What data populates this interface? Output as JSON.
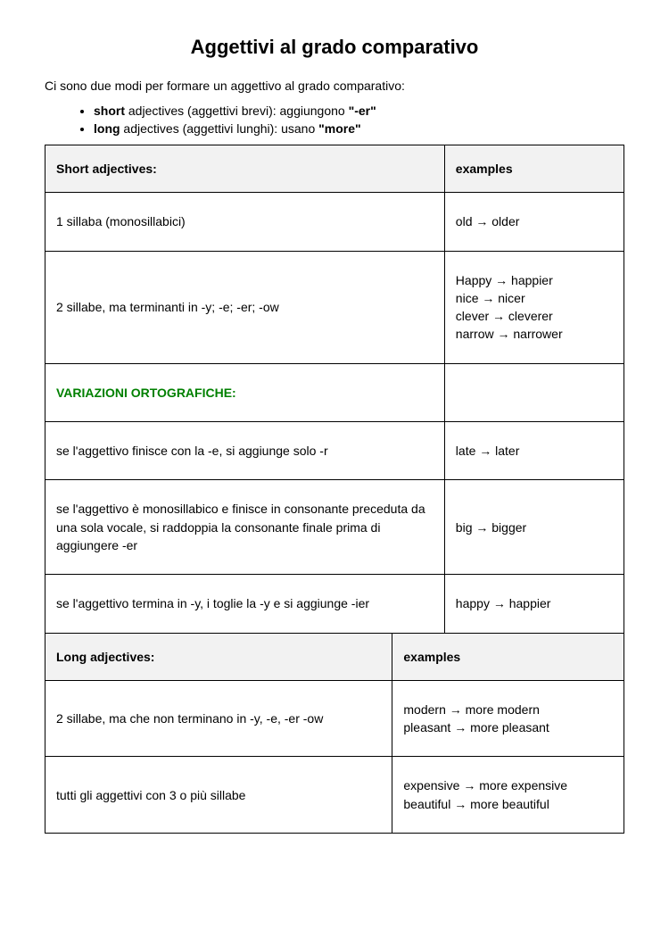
{
  "title": "Aggettivi al grado comparativo",
  "intro": "Ci sono due modi per formare un aggettivo al grado comparativo:",
  "bullets": {
    "b1_pre": "short",
    "b1_mid": " adjectives (aggettivi brevi): aggiungono ",
    "b1_suf": "\"-er\"",
    "b2_pre": "long",
    "b2_mid": " adjectives (aggettivi lunghi): usano ",
    "b2_suf": "\"more\""
  },
  "table1": {
    "header_left": "Short adjectives:",
    "header_right": "examples",
    "rows": [
      {
        "rule": "1 sillaba (monosillabici)",
        "example": "old → older"
      },
      {
        "rule": "2 sillabe, ma terminanti in -y; -e; -er; -ow",
        "example": "Happy → happier\nnice → nicer\nclever → cleverer\nnarrow → narrower"
      },
      {
        "rule": "VARIAZIONI ORTOGRAFICHE:",
        "example": "",
        "variazioni": true
      },
      {
        "rule": "se l'aggettivo finisce con la -e, si aggiunge solo -r",
        "example": "late → later"
      },
      {
        "rule": "se l'aggettivo è monosillabico e finisce in consonante preceduta da una sola vocale, si raddoppia la consonante finale prima di aggiungere -er",
        "example": "big → bigger"
      },
      {
        "rule": "se l'aggettivo termina in -y, i toglie la -y e si aggiunge -ier",
        "example": "happy → happier"
      }
    ]
  },
  "table2": {
    "header_left": "Long adjectives:",
    "header_right": "examples",
    "rows": [
      {
        "rule": "2 sillabe, ma che non terminano in -y, -e, -er -ow",
        "example": "modern → more modern\npleasant → more pleasant"
      },
      {
        "rule": "tutti gli aggettivi con 3 o più sillabe",
        "example": "expensive → more expensive\nbeautiful → more beautiful"
      }
    ]
  }
}
